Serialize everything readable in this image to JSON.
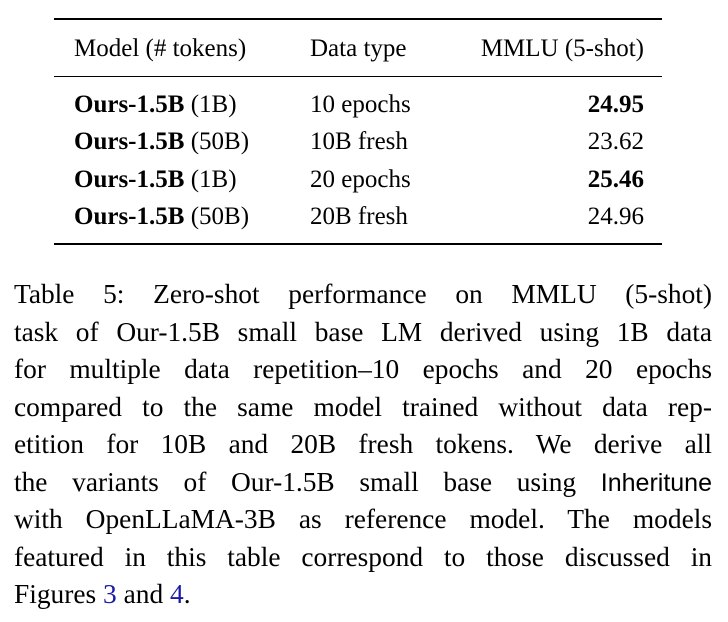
{
  "table": {
    "headers": {
      "model": "Model (# tokens)",
      "data_type": "Data type",
      "mmlu": "MMLU (5-shot)"
    },
    "rows": [
      {
        "model_name": "Ours-1.5B",
        "tokens": "(1B)",
        "data_type": "10 epochs",
        "mmlu": "24.95",
        "mmlu_bold": true
      },
      {
        "model_name": "Ours-1.5B",
        "tokens": "(50B)",
        "data_type": "10B fresh",
        "mmlu": "23.62",
        "mmlu_bold": false
      },
      {
        "model_name": "Ours-1.5B",
        "tokens": "(1B)",
        "data_type": "20 epochs",
        "mmlu": "25.46",
        "mmlu_bold": true
      },
      {
        "model_name": "Ours-1.5B",
        "tokens": "(50B)",
        "data_type": "20B fresh",
        "mmlu": "24.96",
        "mmlu_bold": false
      }
    ]
  },
  "caption": {
    "line1": "Table 5: Zero-shot performance on MMLU (5-shot)",
    "line2": "task of Our-1.5B small base LM derived using 1B data",
    "line3": "for multiple data repetition–10 epochs and 20 epochs",
    "line4": "compared to the same model trained without data rep-",
    "line5": "etition for 10B and 20B fresh tokens.  We derive all",
    "line6_pre": "the variants of Our-1.5B small base using",
    "line6_method": "Inheritune",
    "line7": "with OpenLLaMA-3B as reference model. The models",
    "line8": "featured in this table correspond to those discussed in",
    "line9_pre": "Figures",
    "ref_fig_a": "3",
    "line9_mid": "and",
    "ref_fig_b": "4",
    "line9_end": "."
  }
}
